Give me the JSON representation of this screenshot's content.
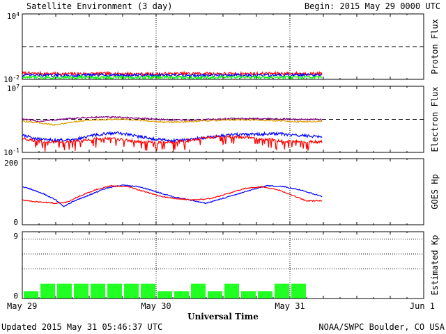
{
  "title": "Satellite Environment (3 day)",
  "begin_label": "Begin:  2015 May 29 0000 UTC",
  "updated": "Updated 2015 May 31 05:46:37 UTC",
  "credit": "NOAA/SWPC Boulder, CO USA",
  "xlabel": "Universal Time",
  "x_ticks": [
    "May 29",
    "May 30",
    "May 31",
    "Jun 1"
  ],
  "colors": {
    "red": "#ff0000",
    "blue": "#0000ff",
    "green": "#00ff00",
    "purple": "#800080",
    "orange": "#e0a000",
    "kp_bar": "#22ff22"
  },
  "chart_data": [
    {
      "type": "line",
      "id": "proton",
      "ylabel": "Proton Flux",
      "yscale": "log",
      "ylim": [
        0.01,
        10000
      ],
      "tick_labels": [
        {
          "base": "10",
          "exp": "4"
        },
        {
          "base": "10",
          "exp": "-2"
        }
      ],
      "threshold": 10,
      "x_range_hours": [
        0,
        72
      ],
      "data_end_hour": 53.8,
      "series": [
        {
          "color": "red",
          "samples_log10": [
            -1.45,
            -1.5,
            -1.48,
            -1.52,
            -1.47,
            -1.5,
            -1.46,
            -1.49
          ]
        },
        {
          "color": "blue",
          "samples_log10": [
            -1.62,
            -1.65,
            -1.6,
            -1.63,
            -1.64,
            -1.61,
            -1.63,
            -1.62
          ]
        },
        {
          "color": "green",
          "samples_log10": [
            -1.82,
            -1.8,
            -1.83,
            -1.81,
            -1.82,
            -1.8,
            -1.83,
            -1.82
          ]
        }
      ]
    },
    {
      "type": "line",
      "id": "electron",
      "ylabel": "Electron Flux",
      "yscale": "log",
      "ylim": [
        0.1,
        10000000
      ],
      "tick_labels": [
        {
          "base": "10",
          "exp": "7"
        },
        {
          "base": "10",
          "exp": "-1"
        }
      ],
      "threshold": 1000,
      "x_range_hours": [
        0,
        72
      ],
      "data_end_hour": 53.8,
      "series": [
        {
          "color": "purple",
          "points": [
            [
              0,
              3.05
            ],
            [
              3,
              2.75
            ],
            [
              6,
              2.95
            ],
            [
              10,
              3.15
            ],
            [
              14,
              3.28
            ],
            [
              18,
              3.22
            ],
            [
              22,
              3.1
            ],
            [
              26,
              2.95
            ],
            [
              30,
              2.88
            ],
            [
              34,
              3.0
            ],
            [
              38,
              3.1
            ],
            [
              42,
              3.08
            ],
            [
              46,
              3.05
            ],
            [
              50,
              3.0
            ],
            [
              53.8,
              2.98
            ]
          ]
        },
        {
          "color": "orange",
          "points": [
            [
              0,
              2.75
            ],
            [
              3,
              2.6
            ],
            [
              6,
              2.3
            ],
            [
              9,
              2.7
            ],
            [
              13,
              2.95
            ],
            [
              18,
              3.0
            ],
            [
              22,
              2.85
            ],
            [
              26,
              2.65
            ],
            [
              30,
              2.7
            ],
            [
              34,
              2.85
            ],
            [
              38,
              2.95
            ],
            [
              42,
              2.9
            ],
            [
              46,
              2.85
            ],
            [
              50,
              2.7
            ],
            [
              53.8,
              2.75
            ]
          ]
        },
        {
          "color": "blue",
          "points": [
            [
              0,
              1.1
            ],
            [
              3,
              0.6
            ],
            [
              6,
              0.45
            ],
            [
              9,
              0.5
            ],
            [
              13,
              1.1
            ],
            [
              17,
              1.4
            ],
            [
              21,
              0.9
            ],
            [
              24,
              0.6
            ],
            [
              27,
              0.4
            ],
            [
              30,
              0.55
            ],
            [
              34,
              0.9
            ],
            [
              38,
              1.15
            ],
            [
              42,
              1.2
            ],
            [
              46,
              1.25
            ],
            [
              50,
              1.05
            ],
            [
              53.8,
              0.9
            ]
          ]
        },
        {
          "color": "red",
          "points": [
            [
              0,
              0.6
            ],
            [
              3,
              0.35
            ],
            [
              6,
              0.2
            ],
            [
              9,
              0.3
            ],
            [
              12,
              0.5
            ],
            [
              15,
              0.75
            ],
            [
              18,
              0.5
            ],
            [
              21,
              0.3
            ],
            [
              24,
              0.2
            ],
            [
              27,
              0.25
            ],
            [
              30,
              0.45
            ],
            [
              34,
              0.85
            ],
            [
              38,
              0.9
            ],
            [
              42,
              0.7
            ],
            [
              46,
              0.45
            ],
            [
              50,
              0.3
            ],
            [
              53.8,
              0.25
            ]
          ]
        }
      ]
    },
    {
      "type": "line",
      "id": "goes_hp",
      "ylabel": "GOES Hp",
      "ylim": [
        0,
        200
      ],
      "y_ticks": [
        0,
        200
      ],
      "x_range_hours": [
        0,
        72
      ],
      "data_end_hour": 53.8,
      "series": [
        {
          "color": "blue",
          "points": [
            [
              0,
              115
            ],
            [
              2,
              105
            ],
            [
              4,
              92
            ],
            [
              6,
              75
            ],
            [
              7.5,
              55
            ],
            [
              9,
              70
            ],
            [
              12,
              90
            ],
            [
              15,
              110
            ],
            [
              18,
              120
            ],
            [
              21,
              115
            ],
            [
              24,
              100
            ],
            [
              27,
              85
            ],
            [
              30,
              75
            ],
            [
              33,
              65
            ],
            [
              35,
              75
            ],
            [
              38,
              90
            ],
            [
              41,
              105
            ],
            [
              44,
              118
            ],
            [
              47,
              115
            ],
            [
              50,
              105
            ],
            [
              53.8,
              85
            ]
          ]
        },
        {
          "color": "red",
          "points": [
            [
              0,
              75
            ],
            [
              2,
              70
            ],
            [
              4,
              68
            ],
            [
              6,
              65
            ],
            [
              8,
              68
            ],
            [
              10,
              85
            ],
            [
              13,
              105
            ],
            [
              16,
              118
            ],
            [
              19,
              115
            ],
            [
              22,
              100
            ],
            [
              25,
              85
            ],
            [
              28,
              78
            ],
            [
              31,
              75
            ],
            [
              34,
              80
            ],
            [
              37,
              95
            ],
            [
              40,
              110
            ],
            [
              43,
              115
            ],
            [
              46,
              105
            ],
            [
              49,
              85
            ],
            [
              51,
              72
            ],
            [
              53.8,
              73
            ]
          ]
        }
      ]
    },
    {
      "type": "bar",
      "id": "kp",
      "ylabel": "Estimated Kp",
      "ylim": [
        0,
        9
      ],
      "y_ticks": [
        0,
        9
      ],
      "dotted_lines": [
        4,
        6,
        8
      ],
      "bar_width_hours": 3,
      "values": [
        1,
        2,
        2,
        2,
        2,
        2,
        2,
        2,
        1,
        1,
        2,
        1,
        2,
        1,
        1,
        2,
        2
      ]
    }
  ]
}
